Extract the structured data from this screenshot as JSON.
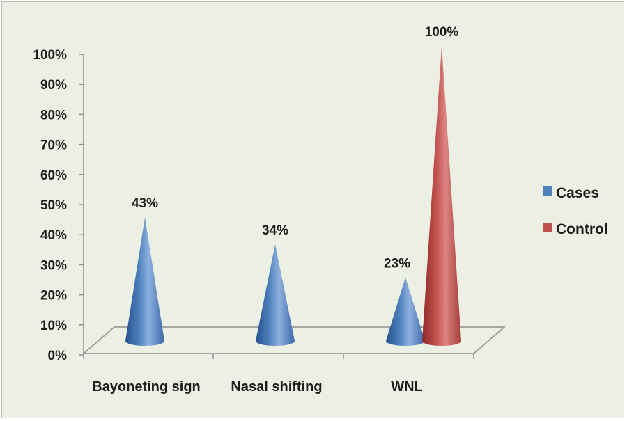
{
  "chart_data": {
    "type": "bar",
    "bar_shape": "cone-3d",
    "categories": [
      "Bayoneting sign",
      "Nasal shifting",
      "WNL"
    ],
    "series": [
      {
        "name": "Cases",
        "values": [
          43,
          34,
          23
        ],
        "color": "#4f81bd"
      },
      {
        "name": "Control",
        "values": [
          null,
          null,
          100
        ],
        "color": "#c0504d"
      }
    ],
    "data_labels": [
      "43%",
      "34%",
      "23%",
      "100%"
    ],
    "y_ticks": [
      "0%",
      "10%",
      "20%",
      "30%",
      "40%",
      "50%",
      "60%",
      "70%",
      "80%",
      "90%",
      "100%"
    ],
    "ylim": [
      0,
      100
    ],
    "grid": false,
    "legend": "right",
    "background": "#ecefe4"
  }
}
